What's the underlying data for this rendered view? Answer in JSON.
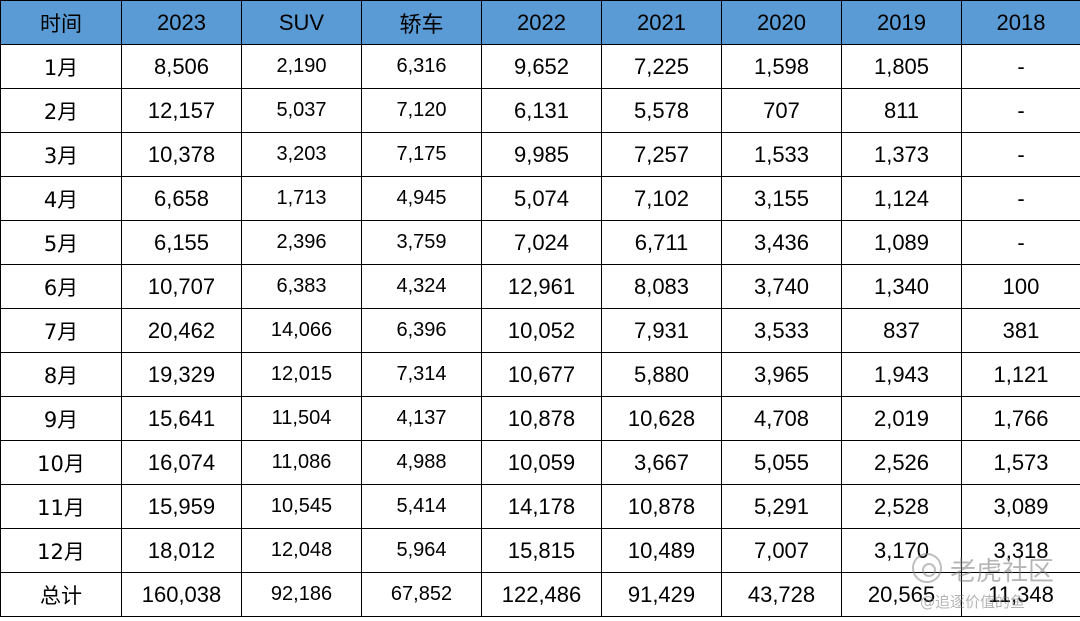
{
  "table": {
    "columns": [
      "时间",
      "2023",
      "SUV",
      "轿车",
      "2022",
      "2021",
      "2020",
      "2019",
      "2018"
    ],
    "rows": [
      [
        "1月",
        "8,506",
        "2,190",
        "6,316",
        "9,652",
        "7,225",
        "1,598",
        "1,805",
        "-"
      ],
      [
        "2月",
        "12,157",
        "5,037",
        "7,120",
        "6,131",
        "5,578",
        "707",
        "811",
        "-"
      ],
      [
        "3月",
        "10,378",
        "3,203",
        "7,175",
        "9,985",
        "7,257",
        "1,533",
        "1,373",
        "-"
      ],
      [
        "4月",
        "6,658",
        "1,713",
        "4,945",
        "5,074",
        "7,102",
        "3,155",
        "1,124",
        "-"
      ],
      [
        "5月",
        "6,155",
        "2,396",
        "3,759",
        "7,024",
        "6,711",
        "3,436",
        "1,089",
        "-"
      ],
      [
        "6月",
        "10,707",
        "6,383",
        "4,324",
        "12,961",
        "8,083",
        "3,740",
        "1,340",
        "100"
      ],
      [
        "7月",
        "20,462",
        "14,066",
        "6,396",
        "10,052",
        "7,931",
        "3,533",
        "837",
        "381"
      ],
      [
        "8月",
        "19,329",
        "12,015",
        "7,314",
        "10,677",
        "5,880",
        "3,965",
        "1,943",
        "1,121"
      ],
      [
        "9月",
        "15,641",
        "11,504",
        "4,137",
        "10,878",
        "10,628",
        "4,708",
        "2,019",
        "1,766"
      ],
      [
        "10月",
        "16,074",
        "11,086",
        "4,988",
        "10,059",
        "3,667",
        "5,055",
        "2,526",
        "1,573"
      ],
      [
        "11月",
        "15,959",
        "10,545",
        "5,414",
        "14,178",
        "10,878",
        "5,291",
        "2,528",
        "3,089"
      ],
      [
        "12月",
        "18,012",
        "12,048",
        "5,964",
        "15,815",
        "10,489",
        "7,007",
        "3,170",
        "3,318"
      ],
      [
        "总计",
        "160,038",
        "92,186",
        "67,852",
        "122,486",
        "91,429",
        "43,728",
        "20,565",
        "11,348"
      ]
    ]
  },
  "watermark": {
    "brand": "老虎社区",
    "user": "@追逐价值的鱼"
  },
  "colors": {
    "header_bg": "#5b9bd5",
    "border": "#000000"
  }
}
